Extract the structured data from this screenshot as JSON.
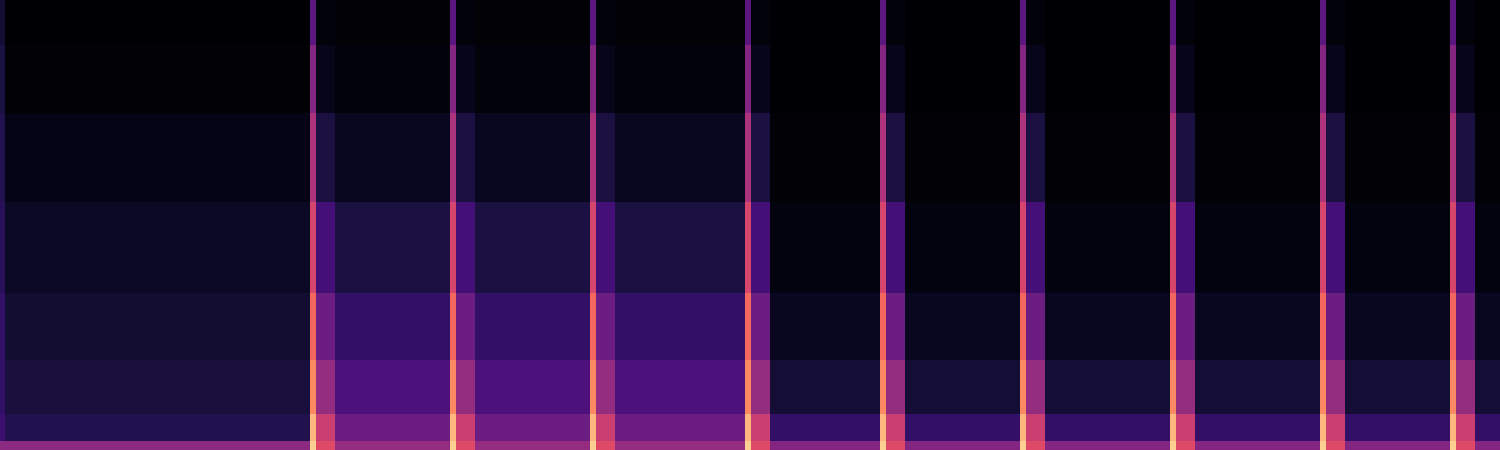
{
  "chart_data": {
    "type": "spectrogram",
    "x": [
      0,
      5,
      310,
      316,
      335,
      450,
      456,
      475,
      590,
      596,
      615,
      745,
      751,
      770,
      880,
      886,
      905,
      1020,
      1026,
      1045,
      1170,
      1176,
      1195,
      1320,
      1326,
      1345,
      1450,
      1456,
      1475,
      1500
    ],
    "y": [
      0,
      0.02,
      0.08,
      0.2,
      0.35,
      0.55,
      0.75,
      0.9,
      1.0
    ],
    "xlim": [
      0,
      1500
    ],
    "ylim": [
      0,
      1
    ],
    "color_range": [
      0,
      100
    ],
    "tick_labels": false,
    "cells": [
      [
        40,
        40,
        90,
        60,
        42,
        90,
        60,
        42,
        90,
        60,
        42,
        90,
        60,
        38,
        90,
        60,
        38,
        90,
        60,
        38,
        90,
        60,
        38,
        90,
        60,
        38,
        90,
        60,
        38
      ],
      [
        20,
        14,
        85,
        55,
        32,
        85,
        55,
        32,
        85,
        55,
        32,
        85,
        55,
        18,
        85,
        55,
        18,
        85,
        55,
        18,
        85,
        55,
        18,
        85,
        55,
        18,
        85,
        55,
        18
      ],
      [
        18,
        11,
        75,
        42,
        24,
        75,
        42,
        24,
        75,
        42,
        24,
        75,
        42,
        10,
        75,
        42,
        10,
        75,
        42,
        10,
        75,
        42,
        10,
        75,
        42,
        10,
        75,
        42,
        10
      ],
      [
        18,
        9,
        68,
        32,
        18,
        68,
        32,
        18,
        68,
        32,
        18,
        68,
        32,
        6,
        68,
        32,
        6,
        68,
        32,
        6,
        68,
        32,
        6,
        68,
        32,
        6,
        68,
        32,
        6
      ],
      [
        16,
        7,
        58,
        22,
        12,
        58,
        22,
        12,
        58,
        22,
        12,
        58,
        22,
        3,
        58,
        22,
        3,
        58,
        22,
        3,
        58,
        22,
        3,
        58,
        22,
        3,
        58,
        22,
        3
      ],
      [
        14,
        4,
        48,
        12,
        6,
        48,
        12,
        6,
        48,
        12,
        6,
        48,
        12,
        1,
        48,
        12,
        1,
        48,
        12,
        1,
        48,
        12,
        1,
        48,
        12,
        1,
        48,
        12,
        1
      ],
      [
        12,
        1,
        38,
        5,
        2,
        38,
        5,
        2,
        38,
        5,
        2,
        38,
        5,
        0,
        38,
        5,
        0,
        38,
        5,
        0,
        38,
        5,
        0,
        38,
        5,
        0,
        38,
        5,
        0
      ],
      [
        10,
        0,
        28,
        2,
        1,
        28,
        2,
        1,
        28,
        2,
        1,
        28,
        2,
        0,
        28,
        2,
        0,
        28,
        2,
        0,
        28,
        2,
        0,
        28,
        2,
        0,
        28,
        2,
        0
      ]
    ]
  }
}
